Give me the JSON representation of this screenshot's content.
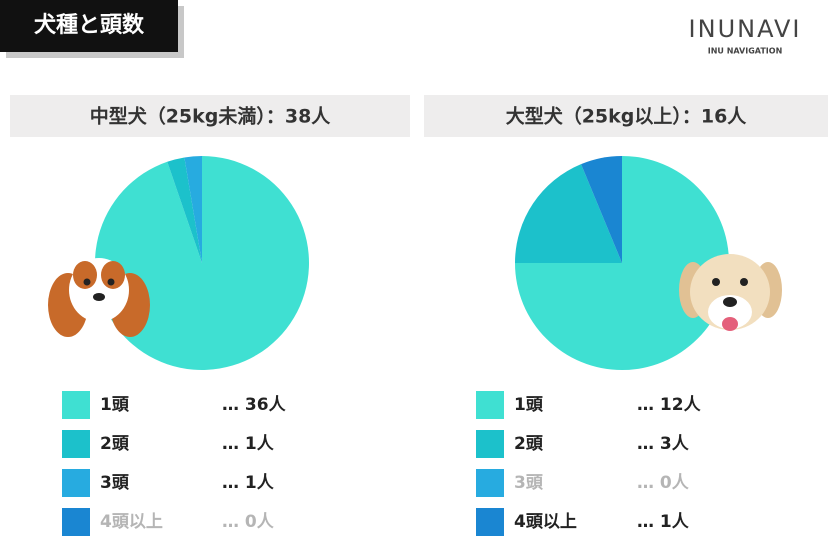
{
  "header": {
    "title": "犬種と頭数",
    "logo": "INUNAVI",
    "logo_sub": "INU NAVIGATION"
  },
  "chart_data": [
    {
      "type": "pie",
      "title": "中型犬（25kg未満）：38人",
      "categories": [
        "1頭",
        "2頭",
        "3頭",
        "4頭以上"
      ],
      "values": [
        36,
        1,
        1,
        0
      ],
      "value_labels": [
        "… 36人",
        "… 1人",
        "… 1人",
        "… 0人"
      ],
      "colors": [
        "#3fe0d2",
        "#1cc1cb",
        "#27abe0",
        "#1a86d2"
      ]
    },
    {
      "type": "pie",
      "title": "大型犬（25kg以上）：16人",
      "categories": [
        "1頭",
        "2頭",
        "3頭",
        "4頭以上"
      ],
      "values": [
        12,
        3,
        0,
        1
      ],
      "value_labels": [
        "… 12人",
        "… 3人",
        "… 0人",
        "… 1人"
      ],
      "colors": [
        "#3fe0d2",
        "#1cc1cb",
        "#27abe0",
        "#1a86d2"
      ]
    }
  ]
}
